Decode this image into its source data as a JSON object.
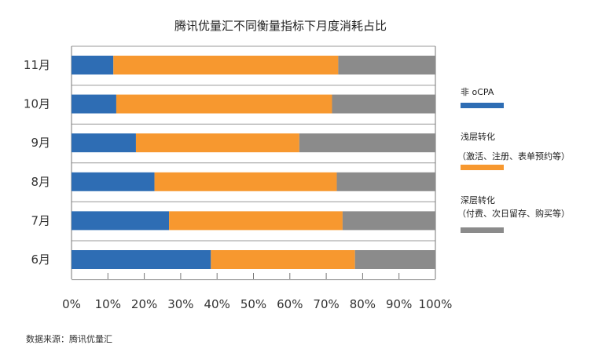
{
  "chart_data": {
    "type": "bar",
    "orientation": "horizontal",
    "stacked": true,
    "title": "腾讯优量汇不同衡量指标下月度消耗占比",
    "categories": [
      "11月",
      "10月",
      "9月",
      "8月",
      "7月",
      "6月"
    ],
    "series": [
      {
        "name": "非 oCPA",
        "name_line2": "",
        "color": "#2e6db4",
        "values": [
          11.5,
          12.3,
          17.7,
          22.8,
          26.8,
          38.3
        ]
      },
      {
        "name": "浅层转化",
        "name_line2": "（激活、注册、表单预约等）",
        "color": "#f7982f",
        "values": [
          61.8,
          59.3,
          44.9,
          50.1,
          47.7,
          39.6
        ]
      },
      {
        "name": "深层转化",
        "name_line2": "（付费、次日留存、购买等）",
        "color": "#8b8b8b",
        "values": [
          26.7,
          28.4,
          37.4,
          27.1,
          25.5,
          22.1
        ]
      }
    ],
    "xticks": [
      "0%",
      "10%",
      "20%",
      "30%",
      "40%",
      "50%",
      "60%",
      "70%",
      "80%",
      "90%",
      "100%"
    ],
    "xlim": [
      0,
      100
    ],
    "grid": true,
    "legend": "right"
  },
  "source": "数据来源：腾讯优量汇"
}
